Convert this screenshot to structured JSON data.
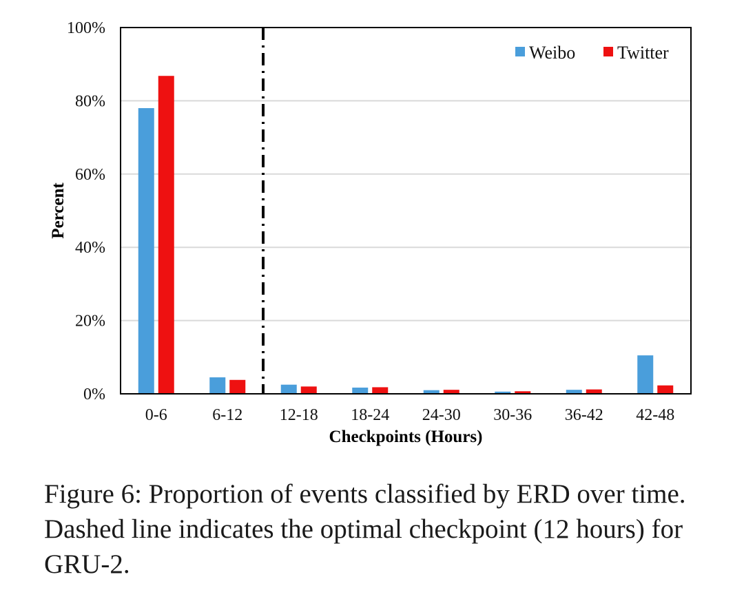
{
  "chart_data": {
    "type": "bar",
    "categories": [
      "0-6",
      "6-12",
      "12-18",
      "18-24",
      "24-30",
      "30-36",
      "36-42",
      "42-48"
    ],
    "series": [
      {
        "name": "Weibo",
        "values": [
          78,
          4.5,
          2.5,
          1.7,
          1.0,
          0.6,
          1.1,
          10.5
        ],
        "color": "#4A9EDB"
      },
      {
        "name": "Twitter",
        "values": [
          86.8,
          3.8,
          2.0,
          1.8,
          1.1,
          0.7,
          1.2,
          2.3
        ],
        "color": "#EE1111"
      }
    ],
    "xlabel": "Checkpoints (Hours)",
    "ylabel": "Percent",
    "ylim": [
      0,
      100
    ],
    "yticks": [
      0,
      20,
      40,
      60,
      80,
      100
    ],
    "ytick_labels": [
      "0%",
      "20%",
      "40%",
      "60%",
      "80%",
      "100%"
    ],
    "grid": "horizontal",
    "legend_position": "top-right",
    "annotations": [
      {
        "type": "dashed vertical line",
        "between_categories": [
          "6-12",
          "12-18"
        ]
      }
    ]
  },
  "caption": "Figure 6:  Proportion of events classified by ERD over time. Dashed line indicates the optimal checkpoint (12 hours) for GRU-2."
}
